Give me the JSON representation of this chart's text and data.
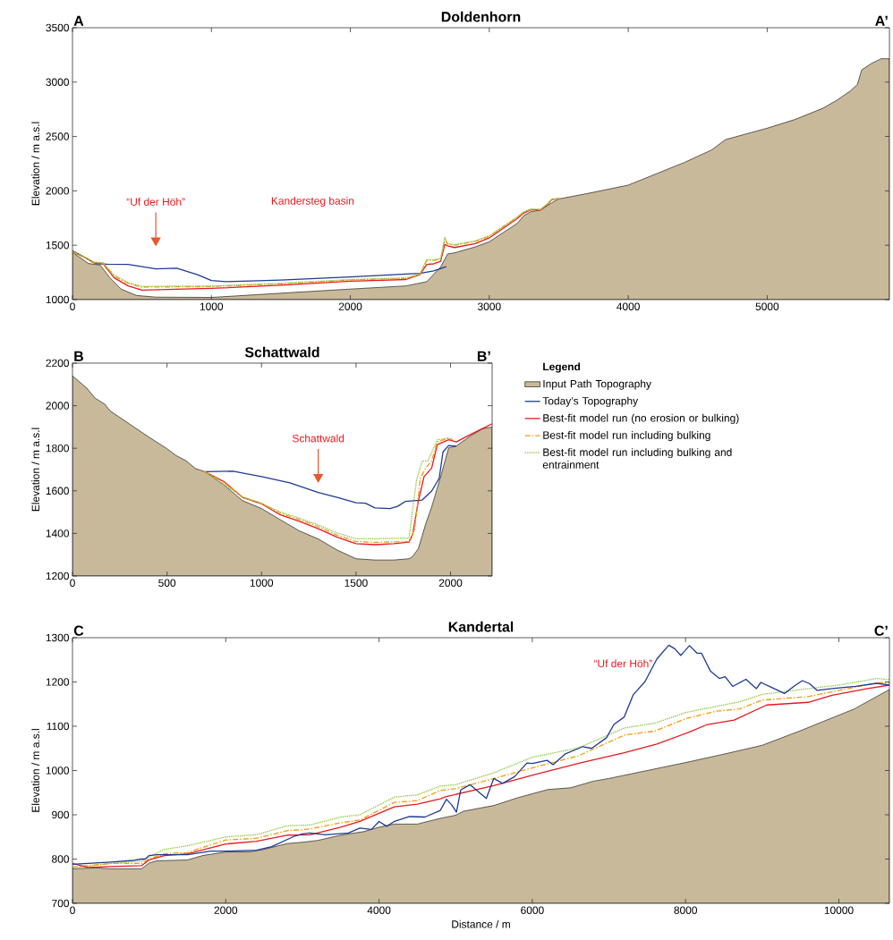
{
  "chart_data": [
    {
      "type": "line",
      "title": "Doldenhorn",
      "ylabel": "Elevation / m a.s.l",
      "xlim": [
        0,
        5880
      ],
      "ylim": [
        1000,
        3500
      ],
      "xticks": [
        0,
        1000,
        2000,
        3000,
        4000,
        5000
      ],
      "yticks": [
        1000,
        1500,
        2000,
        2500,
        3000,
        3500
      ],
      "annotations": [
        "A",
        "A’",
        "Kandersteg basin",
        "“Uf der Höh”"
      ],
      "series": [
        {
          "type": "area",
          "color": "#c9b99b",
          "line_style": "solid",
          "x": [
            0,
            115,
            200,
            270,
            350,
            460,
            600,
            1000,
            1500,
            2000,
            2400,
            2550,
            2650,
            2700,
            2750,
            2900,
            3000,
            3200,
            3250,
            3300,
            3370,
            3450,
            3500,
            3700,
            4000,
            4200,
            4400,
            4600,
            4700,
            4850,
            5000,
            5200,
            5400,
            5500,
            5600,
            5650,
            5680,
            5750,
            5820,
            5880
          ],
          "values": [
            1435,
            1332,
            1317,
            1200,
            1097,
            1038,
            1023,
            1020,
            1059,
            1097,
            1126,
            1165,
            1300,
            1420,
            1430,
            1485,
            1532,
            1700,
            1773,
            1809,
            1823,
            1891,
            1926,
            1974,
            2053,
            2156,
            2259,
            2376,
            2471,
            2524,
            2576,
            2656,
            2759,
            2832,
            2920,
            2979,
            3112,
            3171,
            3215,
            3215
          ]
        },
        {
          "color": "#1f3a93",
          "line_style": "solid",
          "x": [
            0,
            100,
            170,
            250,
            400,
            600,
            750,
            900,
            1000,
            1100,
            1500,
            2000,
            2500,
            2600,
            2690
          ],
          "values": [
            1450,
            1380,
            1330,
            1325,
            1323,
            1282,
            1288,
            1229,
            1176,
            1165,
            1179,
            1209,
            1241,
            1264,
            1303
          ]
        },
        {
          "color": "#e8191e",
          "line_style": "solid",
          "x": [
            0,
            100,
            150,
            220,
            300,
            400,
            500,
            1000,
            1500,
            2000,
            2400,
            2500,
            2550,
            2600,
            2650,
            2680,
            2700,
            2750,
            2900,
            3000,
            3200,
            3250,
            3300,
            3370,
            3420,
            3450,
            3500
          ],
          "values": [
            1440,
            1380,
            1340,
            1330,
            1200,
            1126,
            1088,
            1103,
            1132,
            1170,
            1185,
            1229,
            1323,
            1329,
            1352,
            1508,
            1494,
            1479,
            1515,
            1568,
            1744,
            1797,
            1826,
            1826,
            1876,
            1920,
            1929
          ]
        },
        {
          "color": "#f39c12",
          "line_style": "dashdot",
          "x": [
            0,
            100,
            150,
            220,
            300,
            400,
            500,
            1000,
            1500,
            2000,
            2400,
            2500,
            2550,
            2600,
            2650,
            2680,
            2700,
            2750,
            2900,
            3000,
            3200,
            3250,
            3300,
            3370,
            3420,
            3450,
            3500
          ],
          "values": [
            1440,
            1380,
            1340,
            1335,
            1215,
            1150,
            1115,
            1120,
            1145,
            1180,
            1195,
            1230,
            1360,
            1360,
            1372,
            1560,
            1510,
            1500,
            1535,
            1582,
            1755,
            1805,
            1830,
            1828,
            1880,
            1922,
            1929
          ]
        },
        {
          "color": "#8cc63f",
          "line_style": "dotted",
          "x": [
            0,
            100,
            150,
            220,
            300,
            400,
            500,
            1000,
            1500,
            2000,
            2400,
            2500,
            2550,
            2600,
            2650,
            2680,
            2700,
            2750,
            2900,
            3000,
            3200,
            3250,
            3300,
            3370,
            3420,
            3450,
            3500
          ],
          "values": [
            1445,
            1385,
            1345,
            1340,
            1225,
            1158,
            1122,
            1125,
            1150,
            1185,
            1200,
            1235,
            1368,
            1365,
            1378,
            1572,
            1515,
            1505,
            1540,
            1588,
            1760,
            1810,
            1833,
            1830,
            1882,
            1924,
            1930
          ]
        }
      ]
    },
    {
      "type": "line",
      "title": "Schattwald",
      "ylabel": "Elevation / m a.s.l",
      "xlim": [
        0,
        2220
      ],
      "ylim": [
        1200,
        2200
      ],
      "xticks": [
        0,
        500,
        1000,
        1500,
        2000
      ],
      "yticks": [
        1200,
        1400,
        1600,
        1800,
        2000,
        2200
      ],
      "legend": "right",
      "legend_title": "Legend",
      "annotations": [
        "B",
        "B’",
        "Schattwald"
      ],
      "series": [
        {
          "name": "Input Path Topography",
          "type": "area",
          "color": "#c9b99b",
          "line_style": "solid",
          "x": [
            0,
            75,
            120,
            170,
            200,
            300,
            400,
            500,
            550,
            600,
            650,
            700,
            800,
            900,
            1000,
            1100,
            1200,
            1300,
            1400,
            1500,
            1600,
            1700,
            1780,
            1800,
            1830,
            1870,
            1900,
            1950,
            1990,
            2030,
            2100,
            2170,
            2220
          ],
          "values": [
            2140,
            2083,
            2035,
            2008,
            1975,
            1915,
            1855,
            1798,
            1765,
            1742,
            1705,
            1690,
            1629,
            1554,
            1517,
            1464,
            1412,
            1374,
            1322,
            1281,
            1275,
            1275,
            1281,
            1292,
            1329,
            1449,
            1524,
            1674,
            1802,
            1810,
            1855,
            1892,
            1900
          ]
        },
        {
          "name": "Today’s Topography",
          "color": "#1f3a93",
          "line_style": "solid",
          "x": [
            700,
            850,
            1000,
            1150,
            1300,
            1400,
            1500,
            1550,
            1600,
            1680,
            1720,
            1760,
            1850,
            1900,
            1940,
            1960,
            1990,
            2030
          ],
          "values": [
            1690,
            1692,
            1667,
            1637,
            1592,
            1569,
            1544,
            1542,
            1520,
            1517,
            1527,
            1550,
            1557,
            1599,
            1659,
            1783,
            1813,
            1810
          ]
        },
        {
          "name": "Best-fit model run (no erosion or bulking)",
          "color": "#e8191e",
          "line_style": "solid",
          "x": [
            700,
            800,
            900,
            1000,
            1100,
            1200,
            1300,
            1400,
            1500,
            1600,
            1700,
            1780,
            1800,
            1830,
            1860,
            1900,
            1930,
            1990,
            2030,
            2100,
            2220
          ],
          "values": [
            1690,
            1644,
            1569,
            1539,
            1487,
            1457,
            1422,
            1382,
            1352,
            1347,
            1352,
            1359,
            1397,
            1554,
            1667,
            1707,
            1817,
            1840,
            1830,
            1862,
            1915
          ]
        },
        {
          "name": "Best-fit model run including bulking",
          "color": "#f39c12",
          "line_style": "dashdot",
          "x": [
            700,
            800,
            900,
            1000,
            1100,
            1200,
            1300,
            1400,
            1500,
            1600,
            1780,
            1810,
            1840,
            1870,
            1900,
            1930,
            1990,
            2010
          ],
          "values": [
            1690,
            1640,
            1570,
            1540,
            1495,
            1465,
            1432,
            1392,
            1362,
            1358,
            1362,
            1420,
            1660,
            1710,
            1740,
            1830,
            1848,
            1840
          ]
        },
        {
          "name": "Best-fit model run including bulking and entrainment",
          "color": "#8cc63f",
          "line_style": "dotted",
          "x": [
            700,
            900,
            1000,
            1100,
            1200,
            1300,
            1400,
            1500,
            1600,
            1780,
            1820,
            1850,
            1880,
            1930,
            1990,
            2010
          ],
          "values": [
            1690,
            1572,
            1542,
            1500,
            1472,
            1440,
            1402,
            1375,
            1375,
            1378,
            1650,
            1740,
            1740,
            1840,
            1848,
            1840
          ]
        }
      ]
    },
    {
      "type": "line",
      "title": "Kandertal",
      "xlabel": "Distance / m",
      "ylabel": "Elevation / m a.s.l",
      "xlim": [
        0,
        10660
      ],
      "ylim": [
        700,
        1300
      ],
      "xticks": [
        0,
        2000,
        4000,
        6000,
        8000,
        10000
      ],
      "yticks": [
        700,
        800,
        900,
        1000,
        1100,
        1200,
        1300
      ],
      "annotations": [
        "C",
        "C’",
        "“Uf der Höh”"
      ],
      "series": [
        {
          "type": "area",
          "color": "#c9b99b",
          "line_style": "solid",
          "x": [
            0,
            300,
            500,
            900,
            1000,
            1100,
            1500,
            1700,
            2000,
            2300,
            2500,
            2800,
            3000,
            3200,
            3500,
            3800,
            4000,
            4200,
            4500,
            4800,
            5000,
            5100,
            5500,
            5800,
            6200,
            6500,
            6800,
            7000,
            7500,
            8000,
            8500,
            9000,
            9500,
            9800,
            10200,
            10660
          ],
          "values": [
            778,
            780,
            778,
            778,
            791,
            796,
            798,
            808,
            816,
            816,
            822,
            835,
            838,
            842,
            854,
            862,
            872,
            879,
            879,
            892,
            899,
            908,
            921,
            938,
            957,
            961,
            976,
            982,
            1000,
            1018,
            1037,
            1057,
            1090,
            1111,
            1139,
            1183
          ]
        },
        {
          "color": "#8cc63f",
          "line_style": "dotted",
          "x": [
            0,
            500,
            900,
            1000,
            1200,
            1500,
            2000,
            2400,
            2800,
            3100,
            3500,
            3750,
            4200,
            4500,
            4800,
            5000,
            5500,
            6000,
            6600,
            7200,
            7600,
            8000,
            8400,
            8700,
            9000,
            9600,
            10000,
            10500,
            10660
          ],
          "values": [
            780,
            790,
            795,
            805,
            822,
            830,
            850,
            855,
            875,
            877,
            895,
            900,
            940,
            945,
            965,
            968,
            995,
            1030,
            1051,
            1096,
            1107,
            1131,
            1145,
            1155,
            1172,
            1185,
            1193,
            1208,
            1205
          ]
        },
        {
          "color": "#f39c12",
          "line_style": "dashdot",
          "x": [
            0,
            500,
            900,
            1000,
            1200,
            1500,
            2000,
            2400,
            2800,
            3100,
            3500,
            3750,
            4200,
            4500,
            4800,
            5000,
            5500,
            6000,
            6600,
            7200,
            7600,
            8000,
            8400,
            8700,
            9000,
            9600,
            10000,
            10500,
            10660
          ],
          "values": [
            782,
            790,
            790,
            800,
            812,
            815,
            843,
            847,
            864,
            868,
            882,
            888,
            928,
            932,
            955,
            959,
            982,
            1006,
            1033,
            1080,
            1089,
            1117,
            1134,
            1139,
            1159,
            1167,
            1181,
            1198,
            1198
          ]
        },
        {
          "color": "#e8191e",
          "line_style": "solid",
          "x": [
            0,
            200,
            500,
            900,
            1000,
            1200,
            1500,
            2000,
            2400,
            2800,
            3100,
            3500,
            3750,
            4200,
            4500,
            4800,
            4877,
            5497,
            6039,
            6620,
            7200,
            7626,
            8052,
            8285,
            8633,
            9059,
            9601,
            9911,
            10376,
            10660
          ],
          "values": [
            790,
            781,
            783,
            785,
            798,
            808,
            812,
            834,
            840,
            854,
            855,
            872,
            885,
            918,
            924,
            936,
            941,
            966,
            991,
            1017,
            1040,
            1060,
            1087,
            1104,
            1114,
            1148,
            1154,
            1170,
            1185,
            1193
          ]
        },
        {
          "color": "#1f3a93",
          "line_style": "solid",
          "x": [
            0,
            500,
            800,
            900,
            950,
            1000,
            1100,
            1500,
            1800,
            2000,
            2400,
            2600,
            2900,
            3000,
            3100,
            3300,
            3600,
            3750,
            3900,
            4000,
            4100,
            4200,
            4400,
            4600,
            4800,
            4880,
            4950,
            5010,
            5066,
            5187,
            5400,
            5497,
            5613,
            5768,
            5930,
            6000,
            6194,
            6271,
            6426,
            6658,
            6774,
            6968,
            7065,
            7200,
            7317,
            7471,
            7626,
            7781,
            7859,
            7936,
            8052,
            8149,
            8207,
            8323,
            8440,
            8517,
            8614,
            8788,
            8924,
            8982,
            9117,
            9291,
            9427,
            9524,
            9620,
            9717,
            9911,
            10221,
            10492,
            10660
          ],
          "values": [
            788,
            793,
            797,
            800,
            800,
            808,
            810,
            810,
            818,
            818,
            820,
            828,
            852,
            857,
            859,
            855,
            859,
            870,
            867,
            885,
            874,
            885,
            896,
            895,
            910,
            935,
            922,
            906,
            956,
            968,
            937,
            982,
            971,
            986,
            1017,
            1016,
            1023,
            1013,
            1037,
            1054,
            1050,
            1074,
            1104,
            1121,
            1171,
            1201,
            1252,
            1283,
            1275,
            1260,
            1282,
            1265,
            1265,
            1225,
            1208,
            1212,
            1190,
            1206,
            1185,
            1199,
            1188,
            1174,
            1192,
            1203,
            1196,
            1181,
            1185,
            1190,
            1197,
            1193
          ]
        }
      ]
    }
  ]
}
